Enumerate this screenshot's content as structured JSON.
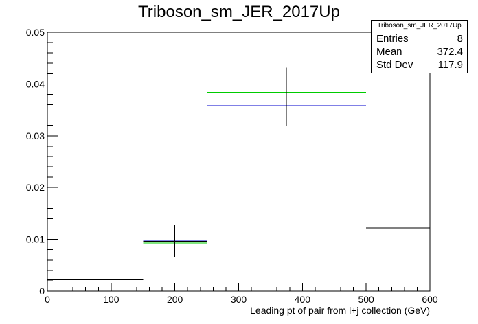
{
  "chart_data": {
    "type": "histogram",
    "title": "Triboson_sm_JER_2017Up",
    "xlabel": "Leading pt of pair from l+j collection (GeV)",
    "ylabel": "",
    "xlim": [
      0,
      600
    ],
    "ylim": [
      0,
      0.05
    ],
    "x_ticks": [
      "0",
      "100",
      "200",
      "300",
      "400",
      "500",
      "600"
    ],
    "y_ticks": [
      "0",
      "0.01",
      "0.02",
      "0.03",
      "0.04",
      "0.05"
    ],
    "bins": [
      {
        "xlow": 0,
        "xhigh": 150,
        "center": 75,
        "value": 0.0022,
        "error": 0.0013
      },
      {
        "xlow": 150,
        "xhigh": 250,
        "center": 200,
        "value": 0.0096,
        "error": 0.0031
      },
      {
        "xlow": 250,
        "xhigh": 500,
        "center": 375,
        "value": 0.0375,
        "error": 0.0057
      },
      {
        "xlow": 500,
        "xhigh": 600,
        "center": 550,
        "value": 0.0122,
        "error": 0.0033
      }
    ],
    "variations": [
      {
        "color": "#00cc00",
        "values": [
          null,
          0.0093,
          0.0384,
          null
        ]
      },
      {
        "color": "#0000cc",
        "values": [
          null,
          0.0098,
          0.0358,
          null
        ]
      }
    ],
    "grid": false
  },
  "stats": {
    "title": "Triboson_sm_JER_2017Up",
    "rows": [
      {
        "label": "Entries",
        "value": "8"
      },
      {
        "label": "Mean",
        "value": "372.4"
      },
      {
        "label": "Std Dev",
        "value": "117.9"
      }
    ]
  }
}
